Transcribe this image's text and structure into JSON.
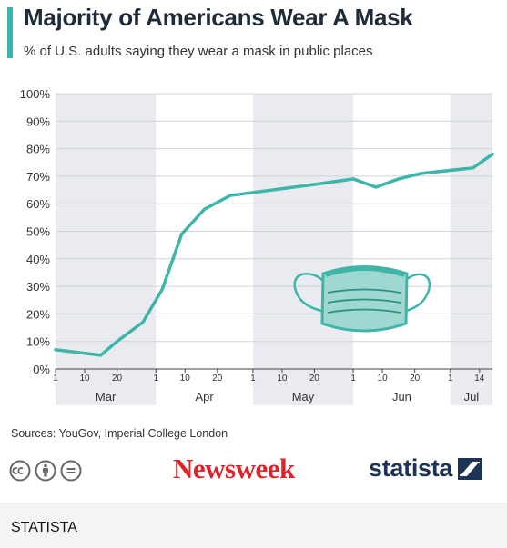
{
  "header": {
    "title": "Majority of Americans Wear A Mask",
    "subtitle": "% of U.S. adults saying they wear a mask in public places"
  },
  "footer": {
    "sources": "Sources: YouGov, Imperial College London",
    "newsweek_logo": "Newsweek",
    "statista_logo": "statista",
    "caption": "STATISTA"
  },
  "icons": [
    "face-mask-icon",
    "creative-commons-icon",
    "attribution-icon",
    "no-derivatives-icon",
    "statista-logo-icon"
  ],
  "colors": {
    "line": "#3eb5a8",
    "mask_fill": "#9fd8d1",
    "band": "#e9ebf1",
    "newsweek": "#e0232b",
    "statista": "#1e3457"
  },
  "chart_data": {
    "type": "line",
    "title": "Majority of Americans Wear A Mask",
    "subtitle": "% of U.S. adults saying they wear a mask in public places",
    "xlabel": "",
    "ylabel": "",
    "ylim": [
      0,
      100
    ],
    "yticks": [
      "0%",
      "10%",
      "20%",
      "30%",
      "40%",
      "50%",
      "60%",
      "70%",
      "80%",
      "90%",
      "100%"
    ],
    "xlim": [
      "2020-03-01",
      "2020-07-14"
    ],
    "x_tick_labels": [
      "1",
      "10",
      "20",
      "1",
      "10",
      "20",
      "1",
      "10",
      "20",
      "1",
      "10",
      "20",
      "1",
      "14"
    ],
    "months": [
      "Mar",
      "Apr",
      "May",
      "Jun",
      "Jul"
    ],
    "grid": true,
    "series": [
      {
        "points": [
          {
            "x": "2020-03-01",
            "y": 7
          },
          {
            "x": "2020-03-15",
            "y": 5
          },
          {
            "x": "2020-03-20",
            "y": 10
          },
          {
            "x": "2020-03-28",
            "y": 17
          },
          {
            "x": "2020-04-03",
            "y": 29
          },
          {
            "x": "2020-04-09",
            "y": 49
          },
          {
            "x": "2020-04-16",
            "y": 58
          },
          {
            "x": "2020-04-24",
            "y": 63
          },
          {
            "x": "2020-05-20",
            "y": 67
          },
          {
            "x": "2020-06-01",
            "y": 69
          },
          {
            "x": "2020-06-08",
            "y": 66
          },
          {
            "x": "2020-06-15",
            "y": 69
          },
          {
            "x": "2020-06-22",
            "y": 71
          },
          {
            "x": "2020-07-08",
            "y": 73
          },
          {
            "x": "2020-07-14",
            "y": 78
          }
        ]
      }
    ]
  }
}
